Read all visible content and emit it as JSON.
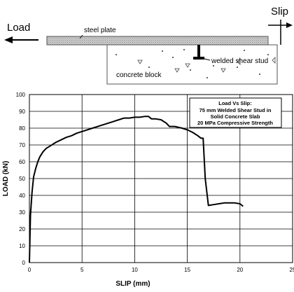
{
  "figure": {
    "label_load": "Load",
    "label_slip": "Slip",
    "label_steel_plate": "steel plate",
    "label_stud": "welded shear stud",
    "label_concrete": "concrete block"
  },
  "chart_data": {
    "type": "line",
    "xlabel": "SLIP (mm)",
    "ylabel": "LOAD (kN)",
    "xlim": [
      0,
      25
    ],
    "ylim": [
      0,
      100
    ],
    "xticks": [
      0,
      5,
      10,
      15,
      20,
      25
    ],
    "yticks": [
      0,
      10,
      20,
      30,
      40,
      50,
      60,
      70,
      80,
      90,
      100
    ],
    "grid": true,
    "legend_lines": [
      "Load Vs Slip:",
      "75 mm Welded Shear Stud in",
      "Solid Concrete Slab",
      "20 MPa Compressive Strength"
    ],
    "legend_position": "top-right",
    "series": [
      {
        "color": "#000000",
        "x": [
          0,
          0.1,
          0.25,
          0.4,
          0.6,
          0.8,
          1.0,
          1.3,
          1.6,
          2.0,
          2.5,
          3.0,
          3.5,
          4.0,
          4.5,
          5.0,
          5.5,
          6.0,
          6.5,
          7.0,
          7.5,
          8.0,
          8.5,
          9.0,
          9.5,
          10.0,
          10.5,
          11.0,
          11.3,
          11.6,
          12.0,
          12.5,
          13.0,
          13.3,
          13.8,
          14.5,
          15.0,
          15.5,
          16.0,
          16.3,
          16.5,
          16.7,
          17.0,
          17.5,
          18.0,
          18.5,
          19.0,
          19.5,
          20.0,
          20.3
        ],
        "y": [
          0,
          28,
          42,
          51,
          56,
          60,
          63,
          66,
          68,
          69.5,
          71.5,
          73,
          74.5,
          75.5,
          77,
          78,
          79,
          80,
          81,
          82,
          83,
          84,
          85,
          86,
          86,
          86.5,
          86.5,
          87,
          87,
          85.5,
          85.5,
          85,
          83,
          81,
          81,
          80,
          79,
          77.5,
          75.5,
          74,
          74,
          50,
          34,
          34.5,
          35,
          35.5,
          35.5,
          35.5,
          35,
          33.5
        ]
      }
    ]
  }
}
